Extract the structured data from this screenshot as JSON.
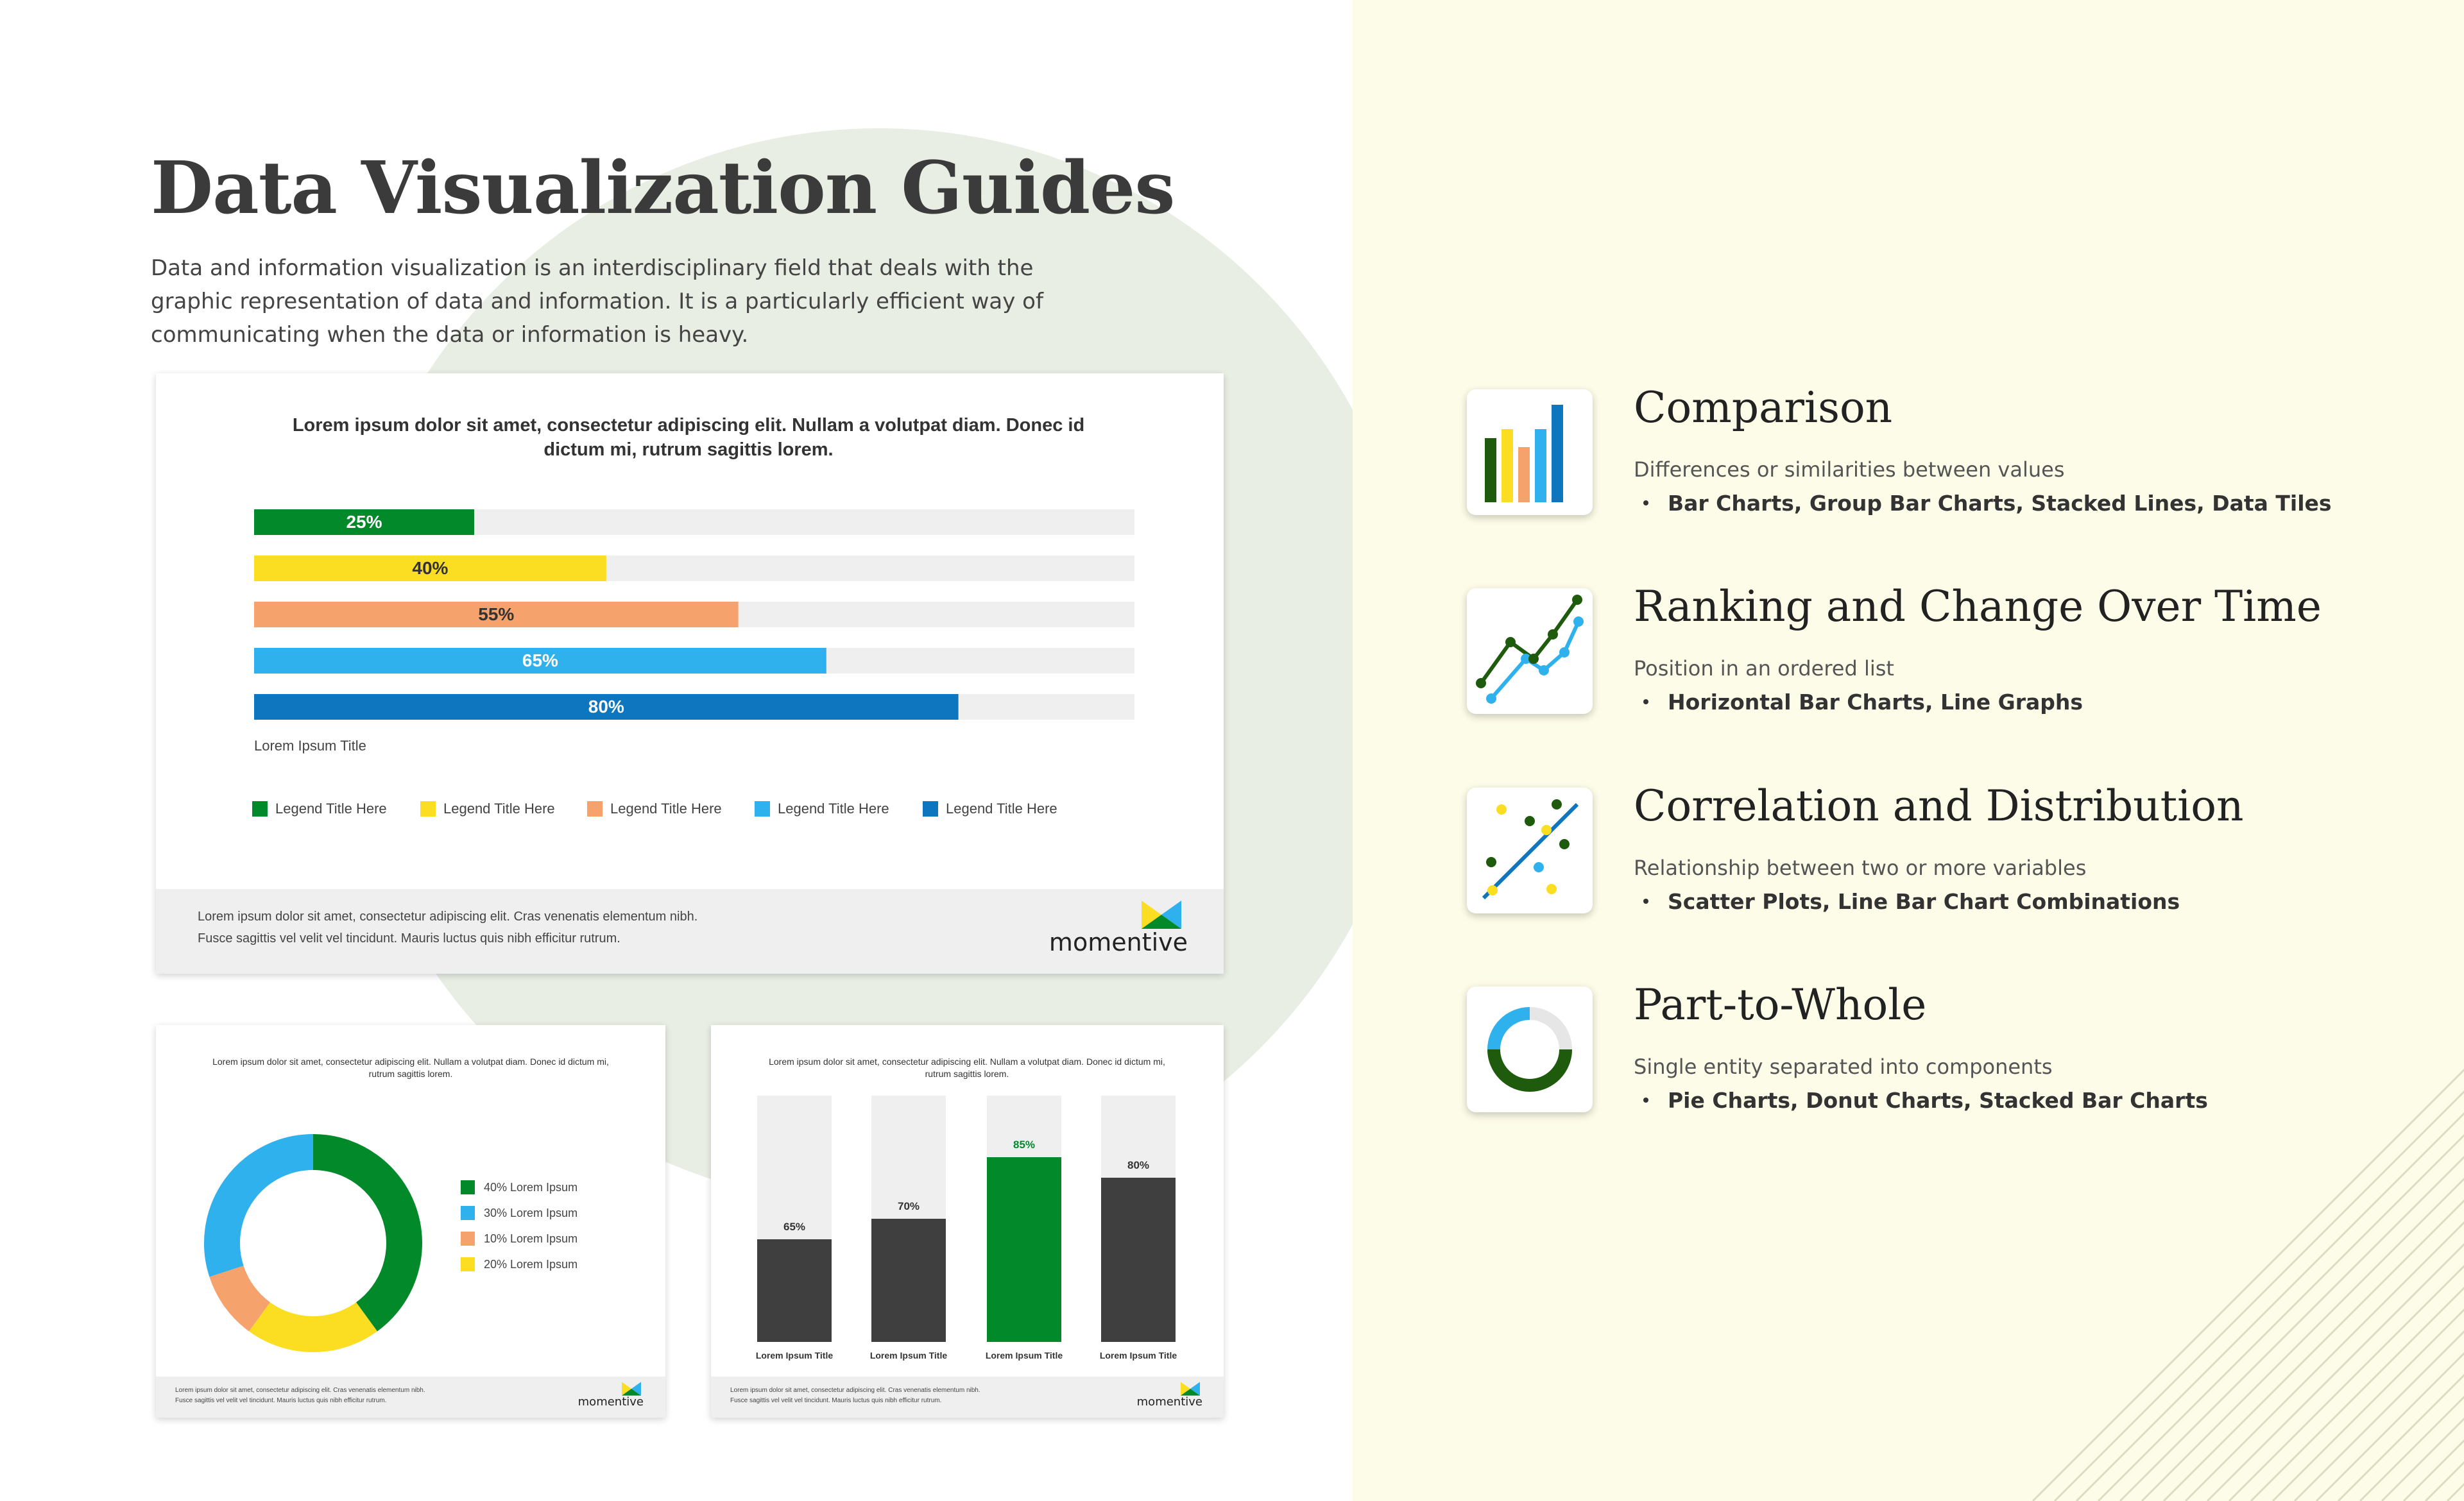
{
  "page": {
    "title": "Data Visualization Guides",
    "intro": "Data and information visualization is an interdisciplinary field that deals with the graphic representation of data and information. It is a particularly efficient way of communicating when the data or information is heavy."
  },
  "colors": {
    "green": "#028a2a",
    "yellow": "#fbde22",
    "orange": "#f6a26d",
    "lightblue": "#2eb1ec",
    "blue": "#0e75bf",
    "dark": "#3f3f3f",
    "track": "#efefef",
    "darkgreen": "#1e5b0c"
  },
  "brand": {
    "logo_text": "momentive",
    "footer_line1": "Lorem ipsum dolor sit amet, consectetur adipiscing elit. Cras venenatis elementum nibh.",
    "footer_line2": "Fusce sagittis vel velit vel tincidunt. Mauris luctus quis nibh efficitur rutrum."
  },
  "chart_data": [
    {
      "type": "bar",
      "orientation": "horizontal",
      "title": "Lorem ipsum dolor sit amet, consectetur adipiscing elit. Nullam a volutpat diam. Donec id dictum mi, rutrum sagittis lorem.",
      "xlabel": "Lorem Ipsum Title",
      "xlim": [
        0,
        100
      ],
      "values": [
        25,
        40,
        55,
        65,
        80
      ],
      "labels": [
        "25%",
        "40%",
        "55%",
        "65%",
        "80%"
      ],
      "colors": [
        "#028a2a",
        "#fbde22",
        "#f6a26d",
        "#2eb1ec",
        "#0e75bf"
      ],
      "legend": [
        "Legend Title Here",
        "Legend Title Here",
        "Legend Title Here",
        "Legend Title Here",
        "Legend Title Here"
      ],
      "legend_position": "bottom"
    },
    {
      "type": "pie",
      "variant": "donut",
      "title": "Lorem ipsum dolor sit amet, consectetur adipiscing elit. Nullam a volutpat diam. Donec id dictum mi, rutrum sagittis lorem.",
      "values": [
        40,
        30,
        10,
        20
      ],
      "slice_order": [
        40,
        20,
        10,
        30
      ],
      "slice_colors": [
        "#028a2a",
        "#fbde22",
        "#f6a26d",
        "#2eb1ec"
      ],
      "legend": [
        {
          "label": "40% Lorem Ipsum",
          "color": "#028a2a"
        },
        {
          "label": "30% Lorem Ipsum",
          "color": "#2eb1ec"
        },
        {
          "label": "10% Lorem Ipsum",
          "color": "#f6a26d"
        },
        {
          "label": "20% Lorem Ipsum",
          "color": "#fbde22"
        }
      ],
      "legend_position": "right"
    },
    {
      "type": "bar",
      "orientation": "vertical",
      "title": "Lorem ipsum dolor sit amet, consectetur adipiscing elit. Nullam a volutpat diam. Donec id dictum mi, rutrum sagittis lorem.",
      "categories": [
        "Lorem Ipsum Title",
        "Lorem Ipsum Title",
        "Lorem Ipsum Title",
        "Lorem Ipsum Title"
      ],
      "values": [
        65,
        70,
        85,
        80
      ],
      "labels": [
        "65%",
        "70%",
        "85%",
        "80%"
      ],
      "highlight_index": 2,
      "ylim": [
        0,
        100
      ]
    }
  ],
  "features": [
    {
      "title": "Comparison",
      "subtitle": "Differences or similarities between values",
      "bullet": "Bar Charts, Group Bar Charts, Stacked Lines, Data Tiles",
      "icon": "bar-chart-icon"
    },
    {
      "title": "Ranking and Change Over Time",
      "subtitle": "Position in an ordered list",
      "bullet": "Horizontal Bar Charts, Line Graphs",
      "icon": "line-chart-icon"
    },
    {
      "title": "Correlation and Distribution",
      "subtitle": "Relationship between two or more variables",
      "bullet": "Scatter Plots, Line Bar Chart Combinations",
      "icon": "scatter-plot-icon"
    },
    {
      "title": "Part-to-Whole",
      "subtitle": "Single entity separated into components",
      "bullet": "Pie Charts, Donut Charts, Stacked Bar Charts",
      "icon": "donut-chart-icon"
    }
  ]
}
